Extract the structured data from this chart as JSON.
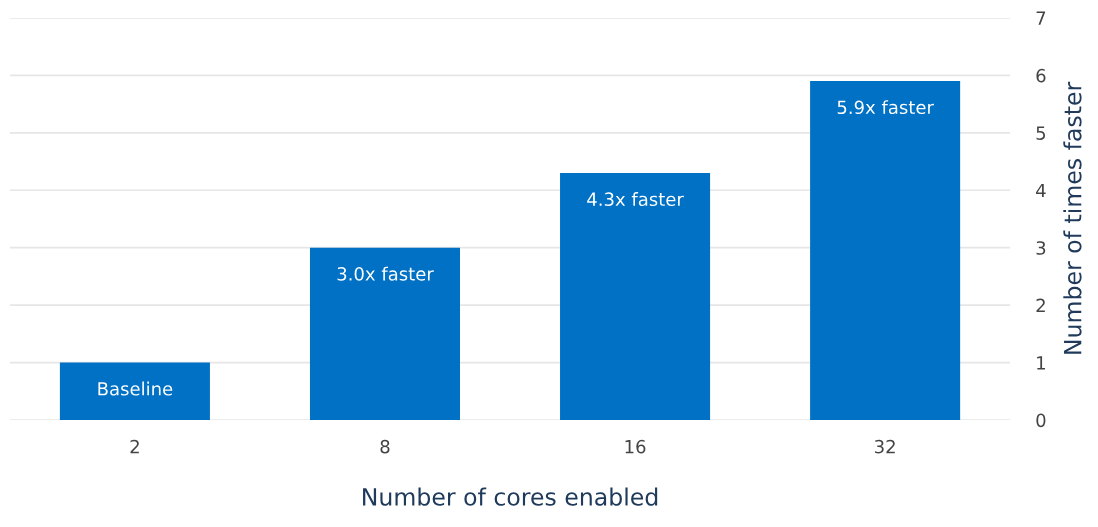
{
  "chart_data": {
    "type": "bar",
    "xlabel": "Number of cores enabled",
    "ylabel": "Number of times faster",
    "categories": [
      "2",
      "8",
      "16",
      "32"
    ],
    "values": [
      1,
      3.0,
      4.3,
      5.9
    ],
    "value_labels": [
      "Baseline",
      "3.0x faster",
      "4.3x faster",
      "5.9x faster"
    ],
    "color": "#0071c5",
    "ylim": [
      0,
      7
    ],
    "yticks": [
      0,
      1,
      2,
      3,
      4,
      5,
      6,
      7
    ],
    "grid": "y"
  }
}
